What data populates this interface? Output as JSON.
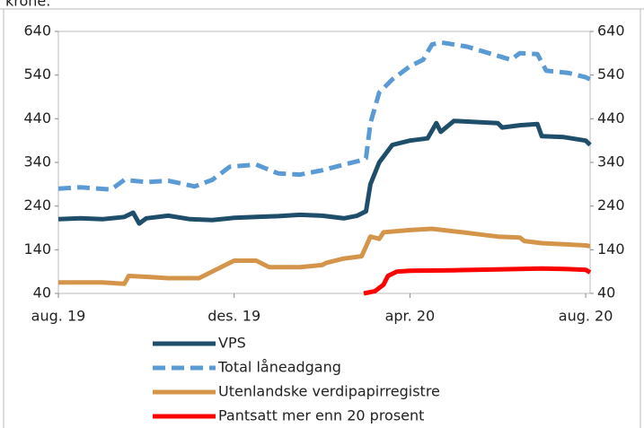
{
  "chart_data": {
    "type": "line",
    "subtitle": "krone.",
    "xlim": [
      0,
      12.1
    ],
    "xticks": [
      {
        "value": 0,
        "label": "aug. 19"
      },
      {
        "value": 4,
        "label": "des. 19"
      },
      {
        "value": 8,
        "label": "apr. 20"
      },
      {
        "value": 12,
        "label": "aug. 20"
      }
    ],
    "ylim": [
      40,
      640
    ],
    "yticks": [
      40,
      140,
      240,
      340,
      440,
      540,
      640
    ],
    "y2lim": [
      40,
      640
    ],
    "y2ticks": [
      40,
      140,
      240,
      340,
      440,
      540,
      640
    ],
    "legend": "bottom",
    "series": [
      {
        "name": "VPS",
        "color": "#1f4e6b",
        "dash": "solid",
        "x": [
          0,
          0.5,
          1,
          1.5,
          1.7,
          1.84,
          2,
          2.5,
          3,
          3.5,
          4,
          4.5,
          5,
          5.5,
          6,
          6.5,
          6.8,
          7.0,
          7.1,
          7.3,
          7.6,
          8,
          8.4,
          8.6,
          8.7,
          9,
          10,
          10.1,
          10.5,
          10.9,
          11,
          11.5,
          12,
          12.1
        ],
        "values": [
          210,
          212,
          210,
          215,
          225,
          200,
          212,
          218,
          210,
          208,
          213,
          215,
          217,
          220,
          218,
          212,
          218,
          228,
          290,
          340,
          380,
          390,
          395,
          430,
          410,
          435,
          430,
          420,
          425,
          428,
          400,
          398,
          390,
          380
        ]
      },
      {
        "name": "Total  låneadgang",
        "color": "#5b9bd5",
        "dash": "dashed",
        "x": [
          0,
          0.5,
          1.2,
          1.5,
          2,
          2.5,
          3.1,
          3.5,
          3.9,
          4.5,
          5,
          5.5,
          6,
          6.5,
          6.9,
          7.0,
          7.1,
          7.3,
          7.6,
          8,
          8.3,
          8.5,
          8.7,
          9.3,
          9.8,
          10.3,
          10.5,
          10.9,
          11.1,
          11.6,
          12,
          12.1
        ],
        "values": [
          280,
          283,
          278,
          300,
          295,
          298,
          285,
          300,
          330,
          335,
          315,
          312,
          322,
          335,
          345,
          350,
          430,
          500,
          530,
          560,
          575,
          610,
          615,
          605,
          590,
          575,
          590,
          588,
          550,
          545,
          535,
          530
        ]
      },
      {
        "name": "Utenlandske verdipapirregistre",
        "color": "#d4954a",
        "dash": "solid",
        "x": [
          0,
          1,
          1.5,
          1.6,
          2,
          2.5,
          3.2,
          3.5,
          4,
          4.5,
          4.8,
          5.5,
          6,
          6.1,
          6.5,
          6.9,
          7.1,
          7.3,
          7.4,
          8,
          8.5,
          9.2,
          9.6,
          10,
          10.5,
          10.6,
          11,
          12,
          12.1
        ],
        "values": [
          65,
          65,
          62,
          80,
          78,
          75,
          75,
          90,
          115,
          115,
          100,
          100,
          105,
          110,
          120,
          125,
          170,
          165,
          180,
          185,
          188,
          180,
          175,
          170,
          168,
          160,
          155,
          150,
          148
        ]
      },
      {
        "name": "Pantsatt mer enn 20 prosent",
        "color": "#ff0000",
        "dash": "solid",
        "x": [
          6.95,
          7.2,
          7.4,
          7.5,
          7.7,
          8,
          9,
          10,
          11,
          11.5,
          12,
          12.1
        ],
        "values": [
          40,
          45,
          60,
          80,
          90,
          92,
          93,
          95,
          97,
          96,
          94,
          88
        ]
      }
    ]
  }
}
